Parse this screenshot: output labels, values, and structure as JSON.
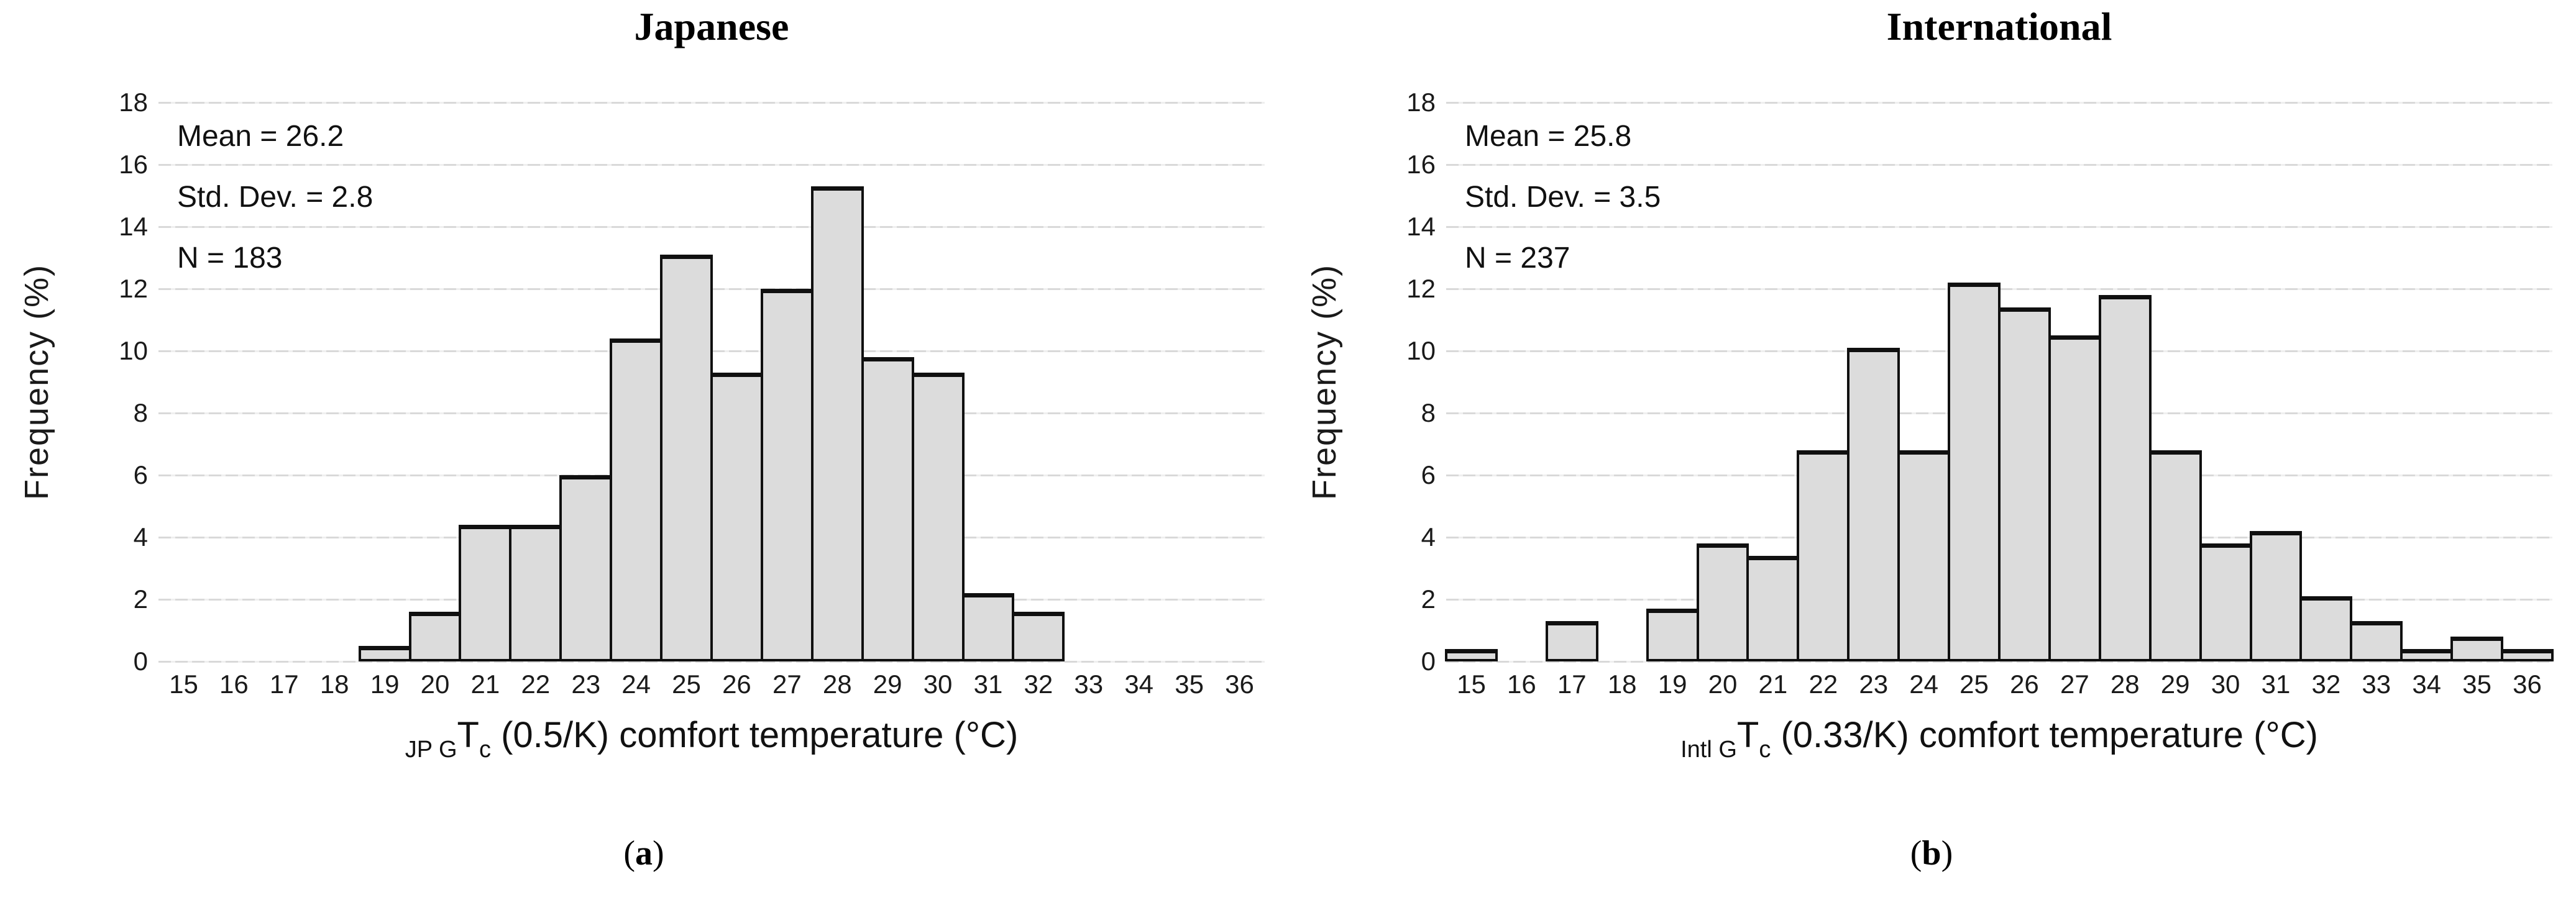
{
  "colors": {
    "background": "#ffffff",
    "bar_fill": "#dcdcdc",
    "bar_border": "#101010",
    "gridline": "#d9d9d9",
    "text": "#1a1a1a"
  },
  "chart_data": [
    {
      "type": "bar",
      "title": "Japanese",
      "ylabel": "Frequency (%)",
      "xlabel": "JP G Tc (0.5/K) comfort temperature (°C)",
      "xlabel_parts": {
        "prefix_subscript": "JP G",
        "symbol": "T",
        "symbol_subscript": "c",
        "suffix": " (0.5/K) comfort temperature (°C)"
      },
      "stats_lines": [
        "Mean = 26.2",
        "Std. Dev. = 2.8",
        "N = 183"
      ],
      "letter": {
        "open": "(",
        "char": "a",
        "close": ")"
      },
      "ylim": [
        0,
        18
      ],
      "yticks": [
        0,
        2,
        4,
        6,
        8,
        10,
        12,
        14,
        16,
        18
      ],
      "grid": true,
      "legend": "none",
      "categories": [
        15,
        16,
        17,
        18,
        19,
        20,
        21,
        22,
        23,
        24,
        25,
        26,
        27,
        28,
        29,
        30,
        31,
        32,
        33,
        34,
        35,
        36
      ],
      "values": [
        0,
        0,
        0,
        0,
        0.5,
        1.6,
        4.4,
        4.4,
        6.0,
        10.4,
        13.1,
        9.3,
        12.0,
        15.3,
        9.8,
        9.3,
        2.2,
        1.6,
        0,
        0,
        0,
        0
      ]
    },
    {
      "type": "bar",
      "title": "International",
      "ylabel": "Frequency (%)",
      "xlabel": "Intl G Tc (0.33/K) comfort temperature (°C)",
      "xlabel_parts": {
        "prefix_subscript": "Intl G",
        "symbol": "T",
        "symbol_subscript": "c",
        "suffix": " (0.33/K) comfort temperature (°C)"
      },
      "stats_lines": [
        "Mean = 25.8",
        "Std. Dev. = 3.5",
        "N = 237"
      ],
      "letter": {
        "open": "(",
        "char": "b",
        "close": ")"
      },
      "ylim": [
        0,
        18
      ],
      "yticks": [
        0,
        2,
        4,
        6,
        8,
        10,
        12,
        14,
        16,
        18
      ],
      "grid": true,
      "legend": "none",
      "categories": [
        15,
        16,
        17,
        18,
        19,
        20,
        21,
        22,
        23,
        24,
        25,
        26,
        27,
        28,
        29,
        30,
        31,
        32,
        33,
        34,
        35,
        36
      ],
      "values": [
        0.4,
        0,
        1.3,
        0,
        1.7,
        3.8,
        3.4,
        6.8,
        10.1,
        6.8,
        12.2,
        11.4,
        10.5,
        11.8,
        6.8,
        3.8,
        4.2,
        2.1,
        1.3,
        0.4,
        0.8,
        0.4
      ]
    }
  ]
}
